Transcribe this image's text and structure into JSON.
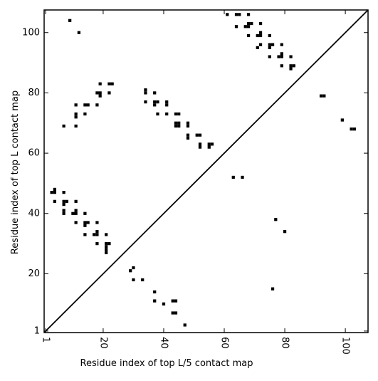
{
  "chart_data": {
    "type": "heatmap",
    "xlabel": "Residue index of top L/5 contact map",
    "ylabel": "Residue index of top L contact map",
    "xlim": [
      0.5,
      107.5
    ],
    "ylim": [
      0.5,
      107.5
    ],
    "x_ticks": [
      1,
      20,
      40,
      60,
      80,
      100
    ],
    "y_ticks": [
      1,
      20,
      40,
      60,
      80,
      100
    ],
    "x_tick_labels": [
      "1",
      "20",
      "40",
      "60",
      "80",
      "100"
    ],
    "y_tick_labels": [
      "1",
      "20",
      "40",
      "60",
      "80",
      "100"
    ],
    "x_tick_rotation": -90,
    "diagonal": true,
    "grid": false,
    "cell_color": "#000000",
    "upper_points": [
      [
        9,
        104
      ],
      [
        12,
        100
      ],
      [
        61,
        106
      ],
      [
        64,
        106
      ],
      [
        65,
        106
      ],
      [
        68,
        106
      ],
      [
        64,
        102
      ],
      [
        67,
        102
      ],
      [
        68,
        102
      ],
      [
        68,
        103
      ],
      [
        69,
        103
      ],
      [
        72,
        103
      ],
      [
        68,
        99
      ],
      [
        71,
        99
      ],
      [
        72,
        99
      ],
      [
        72,
        100
      ],
      [
        75,
        99
      ],
      [
        71,
        95
      ],
      [
        72,
        96
      ],
      [
        75,
        95
      ],
      [
        75,
        96
      ],
      [
        76,
        96
      ],
      [
        79,
        96
      ],
      [
        75,
        92
      ],
      [
        78,
        92
      ],
      [
        79,
        92
      ],
      [
        79,
        93
      ],
      [
        82,
        92
      ],
      [
        79,
        89
      ],
      [
        82,
        89
      ],
      [
        82,
        88
      ],
      [
        83,
        89
      ],
      [
        19,
        83
      ],
      [
        22,
        83
      ],
      [
        23,
        83
      ],
      [
        18,
        80
      ],
      [
        19,
        80
      ],
      [
        19,
        79
      ],
      [
        22,
        80
      ],
      [
        34,
        80
      ],
      [
        34,
        81
      ],
      [
        37,
        80
      ],
      [
        11,
        76
      ],
      [
        14,
        76
      ],
      [
        15,
        76
      ],
      [
        18,
        76
      ],
      [
        34,
        77
      ],
      [
        37,
        77
      ],
      [
        37,
        76
      ],
      [
        38,
        77
      ],
      [
        41,
        77
      ],
      [
        41,
        76
      ],
      [
        11,
        73
      ],
      [
        11,
        72
      ],
      [
        14,
        73
      ],
      [
        38,
        73
      ],
      [
        41,
        73
      ],
      [
        44,
        73
      ],
      [
        45,
        73
      ],
      [
        7,
        69
      ],
      [
        11,
        69
      ],
      [
        44,
        70
      ],
      [
        45,
        70
      ],
      [
        44,
        69
      ],
      [
        45,
        69
      ],
      [
        48,
        70
      ],
      [
        48,
        69
      ],
      [
        48,
        66
      ],
      [
        48,
        65
      ],
      [
        51,
        66
      ],
      [
        52,
        66
      ],
      [
        52,
        63
      ],
      [
        52,
        62
      ],
      [
        55,
        63
      ],
      [
        56,
        63
      ],
      [
        55,
        62
      ],
      [
        92,
        79
      ],
      [
        93,
        79
      ],
      [
        99,
        71
      ],
      [
        102,
        68
      ],
      [
        103,
        68
      ],
      [
        63,
        52
      ],
      [
        66,
        52
      ]
    ],
    "lower_points": [
      [
        3,
        47
      ],
      [
        4,
        47
      ],
      [
        4,
        48
      ],
      [
        7,
        47
      ],
      [
        4,
        44
      ],
      [
        7,
        44
      ],
      [
        7,
        43
      ],
      [
        8,
        44
      ],
      [
        11,
        44
      ],
      [
        7,
        41
      ],
      [
        7,
        40
      ],
      [
        10,
        40
      ],
      [
        11,
        40
      ],
      [
        11,
        41
      ],
      [
        14,
        40
      ],
      [
        11,
        37
      ],
      [
        14,
        37
      ],
      [
        14,
        36
      ],
      [
        15,
        37
      ],
      [
        18,
        37
      ],
      [
        14,
        33
      ],
      [
        17,
        33
      ],
      [
        18,
        33
      ],
      [
        18,
        34
      ],
      [
        21,
        33
      ],
      [
        18,
        30
      ],
      [
        21,
        30
      ],
      [
        21,
        29
      ],
      [
        21,
        28
      ],
      [
        21,
        27
      ],
      [
        22,
        30
      ],
      [
        29,
        21
      ],
      [
        30,
        22
      ],
      [
        30,
        18
      ],
      [
        33,
        18
      ],
      [
        37,
        14
      ],
      [
        37,
        11
      ],
      [
        40,
        10
      ],
      [
        43,
        11
      ],
      [
        44,
        11
      ],
      [
        43,
        7
      ],
      [
        44,
        7
      ],
      [
        47,
        3
      ],
      [
        77,
        38
      ],
      [
        80,
        34
      ],
      [
        76,
        15
      ]
    ]
  }
}
